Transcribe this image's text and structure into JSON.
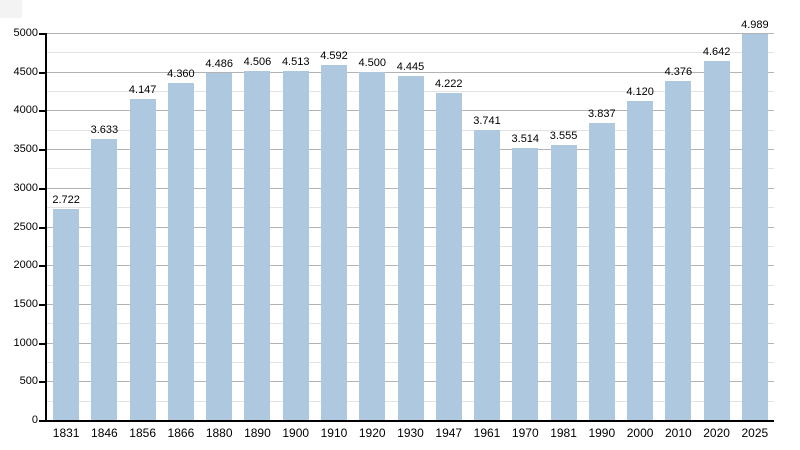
{
  "figure": {
    "background": "#ffffff",
    "title": ""
  },
  "chart_data": {
    "type": "bar",
    "title": "",
    "xlabel": "",
    "ylabel": "",
    "categories": [
      "1831",
      "1846",
      "1856",
      "1866",
      "1880",
      "1890",
      "1900",
      "1910",
      "1920",
      "1930",
      "1947",
      "1961",
      "1970",
      "1981",
      "1990",
      "2000",
      "2010",
      "2020",
      "2025"
    ],
    "values": [
      2722,
      3633,
      4147,
      4360,
      4486,
      4506,
      4513,
      4592,
      4500,
      4445,
      4222,
      3741,
      3514,
      3555,
      3837,
      4120,
      4376,
      4642,
      4989
    ],
    "value_labels": [
      "2.722",
      "3.633",
      "4.147",
      "4.360",
      "4.486",
      "4.506",
      "4.513",
      "4.592",
      "4.500",
      "4.445",
      "4.222",
      "3.741",
      "3.514",
      "3.555",
      "3.837",
      "4.120",
      "4.376",
      "4.642",
      "4.989"
    ],
    "ylim": [
      0,
      5000
    ],
    "y_major_step": 500,
    "y_minor_step": 250,
    "y_tick_labels": [
      "0",
      "500",
      "1000",
      "1500",
      "2000",
      "2500",
      "3000",
      "3500",
      "4000",
      "4500",
      "5000"
    ],
    "grid": "horizontal-major-and-minor",
    "legend": "none",
    "colors": {
      "bar": "#aec8e0",
      "grid_major": "#b3b3b3",
      "grid_minor": "#e3e3e3",
      "axis": "#000000",
      "text": "#000000"
    }
  }
}
